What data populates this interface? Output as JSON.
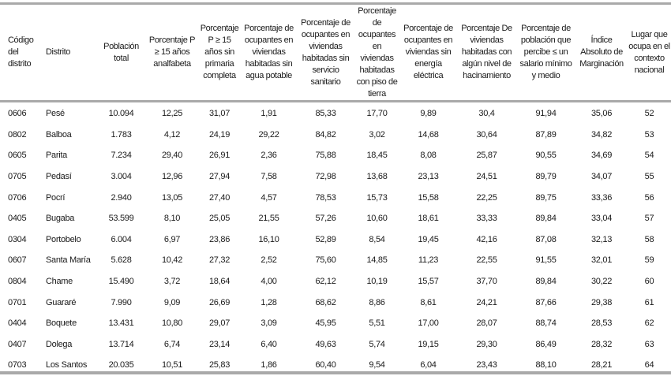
{
  "table": {
    "headers": [
      "Código del distrito",
      "Distrito",
      "Población total",
      "Porcentaje P ≥ 15 años analfabeta",
      "Porcentaje P ≥ 15 años sin primaria completa",
      "Porcentaje de ocupantes en viviendas habitadas sin agua potable",
      "Porcentaje de ocupantes en viviendas habitadas sin servicio sanitario",
      "Porcentaje de ocupantes en viviendas habitadas con piso de tierra",
      "Porcentaje de ocupantes en viviendas sin energía eléctrica",
      "Porcentaje De viviendas habitadas con algún nivel de hacinamiento",
      "Porcentaje de población que percibe ≤ un salario mínimo y medio",
      "Índice Absoluto de Marginación",
      "Lugar que ocupa en el contexto nacional"
    ],
    "rows": [
      [
        "0606",
        "Pesé",
        "10.094",
        "12,25",
        "31,07",
        "1,91",
        "85,33",
        "17,70",
        "9,89",
        "30,4",
        "91,94",
        "35,06",
        "52"
      ],
      [
        "0802",
        "Balboa",
        "1.783",
        "4,12",
        "24,19",
        "29,22",
        "84,82",
        "3,02",
        "14,68",
        "30,64",
        "87,89",
        "34,82",
        "53"
      ],
      [
        "0605",
        "Parita",
        "7.234",
        "29,40",
        "26,91",
        "2,36",
        "75,88",
        "18,45",
        "8,08",
        "25,87",
        "90,55",
        "34,69",
        "54"
      ],
      [
        "0705",
        "Pedasí",
        "3.004",
        "12,96",
        "27,94",
        "7,58",
        "72,98",
        "13,68",
        "23,13",
        "24,51",
        "89,79",
        "34,07",
        "55"
      ],
      [
        "0706",
        "Pocrí",
        "2.940",
        "13,05",
        "27,40",
        "4,57",
        "78,53",
        "15,73",
        "15,58",
        "22,25",
        "89,75",
        "33,36",
        "56"
      ],
      [
        "0405",
        "Bugaba",
        "53.599",
        "8,10",
        "25,05",
        "21,55",
        "57,26",
        "10,60",
        "18,61",
        "33,33",
        "89,84",
        "33,04",
        "57"
      ],
      [
        "0304",
        "Portobelo",
        "6.004",
        "6,97",
        "23,86",
        "16,10",
        "52,89",
        "8,54",
        "19,45",
        "42,16",
        "87,08",
        "32,13",
        "58"
      ],
      [
        "0607",
        "Santa María",
        "5.628",
        "10,42",
        "27,32",
        "2,52",
        "75,60",
        "14,85",
        "11,23",
        "22,55",
        "91,55",
        "32,01",
        "59"
      ],
      [
        "0804",
        "Chame",
        "15.490",
        "3,72",
        "18,64",
        "4,00",
        "62,12",
        "10,19",
        "15,57",
        "37,70",
        "89,84",
        "30,22",
        "60"
      ],
      [
        "0701",
        "Guararé",
        "7.990",
        "9,09",
        "26,69",
        "1,28",
        "68,62",
        "8,86",
        "8,61",
        "24,21",
        "87,66",
        "29,38",
        "61"
      ],
      [
        "0404",
        "Boquete",
        "13.431",
        "10,80",
        "29,07",
        "3,09",
        "45,95",
        "5,51",
        "17,00",
        "28,07",
        "88,74",
        "28,53",
        "62"
      ],
      [
        "0407",
        "Dolega",
        "13.714",
        "6,74",
        "23,14",
        "6,40",
        "49,63",
        "5,74",
        "19,15",
        "29,30",
        "86,49",
        "28,32",
        "63"
      ],
      [
        "0703",
        "Los Santos",
        "20.035",
        "10,51",
        "25,83",
        "1,86",
        "60,40",
        "9,54",
        "6,04",
        "23,43",
        "88,10",
        "28,21",
        "64"
      ]
    ]
  }
}
